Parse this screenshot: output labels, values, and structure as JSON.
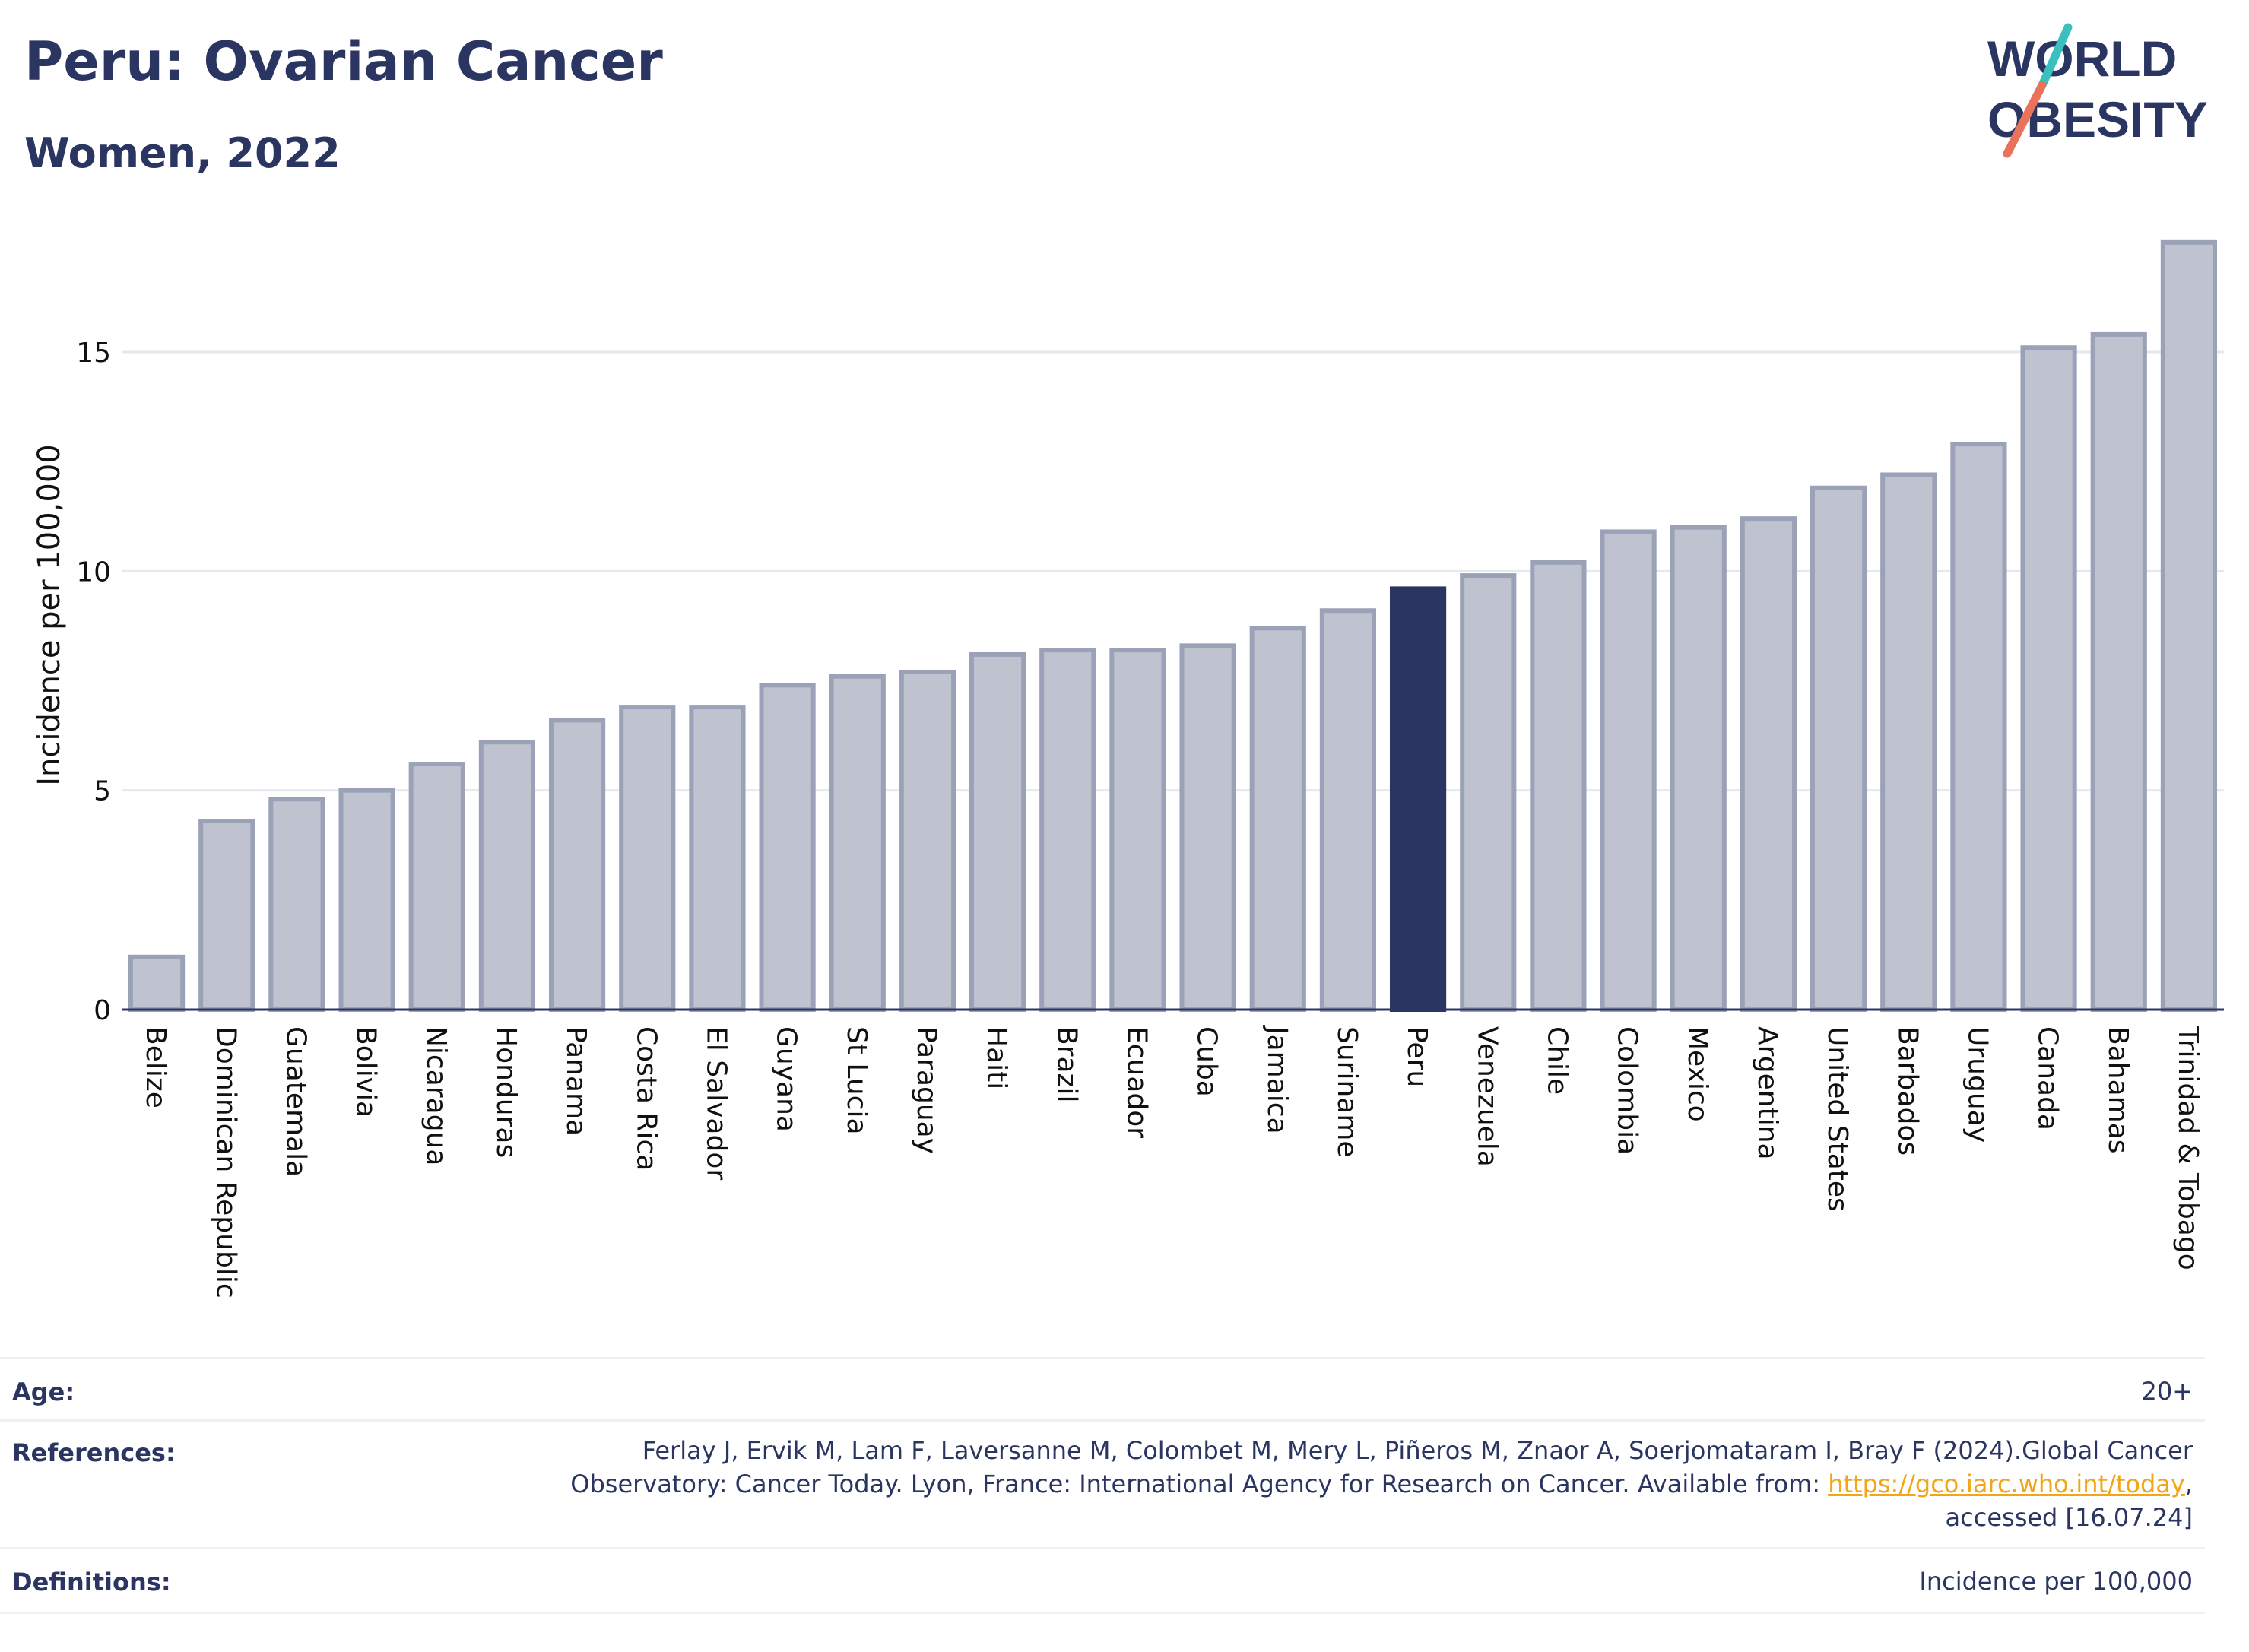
{
  "header": {
    "title": "Peru: Ovarian Cancer",
    "subtitle": "Women, 2022"
  },
  "logo": {
    "line1": "WORLD",
    "line2": "OBESITY",
    "color_text": "#2b3561",
    "color_teal": "#3bbfbf",
    "color_coral": "#e8735a"
  },
  "chart_data": {
    "type": "bar",
    "ylabel": "Incidence per 100,000",
    "ylim": [
      0,
      18
    ],
    "yticks": [
      0,
      5,
      10,
      15
    ],
    "grid": true,
    "highlight": "Peru",
    "highlight_color": "#2b3561",
    "bar_color": "#bfc3d0",
    "bar_border_color": "#9ba2b8",
    "categories": [
      "Belize",
      "Dominican Republic",
      "Guatemala",
      "Bolivia",
      "Nicaragua",
      "Honduras",
      "Panama",
      "Costa Rica",
      "El Salvador",
      "Guyana",
      "St Lucia",
      "Paraguay",
      "Haiti",
      "Brazil",
      "Ecuador",
      "Cuba",
      "Jamaica",
      "Suriname",
      "Peru",
      "Venezuela",
      "Chile",
      "Colombia",
      "Mexico",
      "Argentina",
      "United States",
      "Barbados",
      "Uruguay",
      "Canada",
      "Bahamas",
      "Trinidad & Tobago"
    ],
    "values": [
      1.2,
      4.3,
      4.8,
      5.0,
      5.6,
      6.1,
      6.6,
      6.9,
      6.9,
      7.4,
      7.6,
      7.7,
      8.1,
      8.2,
      8.2,
      8.3,
      8.7,
      9.1,
      9.6,
      9.9,
      10.2,
      10.9,
      11.0,
      11.2,
      11.9,
      12.2,
      12.9,
      15.1,
      15.4,
      17.5
    ]
  },
  "meta": {
    "age_label": "Age:",
    "age_value": "20+",
    "references_label": "References:",
    "references_line1": "Ferlay J, Ervik M, Lam F, Laversanne M, Colombet M, Mery L, Piñeros M, Znaor A, Soerjomataram I, Bray F (2024).Global Cancer",
    "references_line2": "Observatory: Cancer Today. Lyon, France: International Agency for Research on Cancer. Available from: ",
    "references_link": "https://gco.iarc.who.int/today",
    "references_line2_end": ",",
    "references_line3": "accessed [16.07.24]",
    "definitions_label": "Definitions:",
    "definitions_value": "Incidence per 100,000"
  }
}
